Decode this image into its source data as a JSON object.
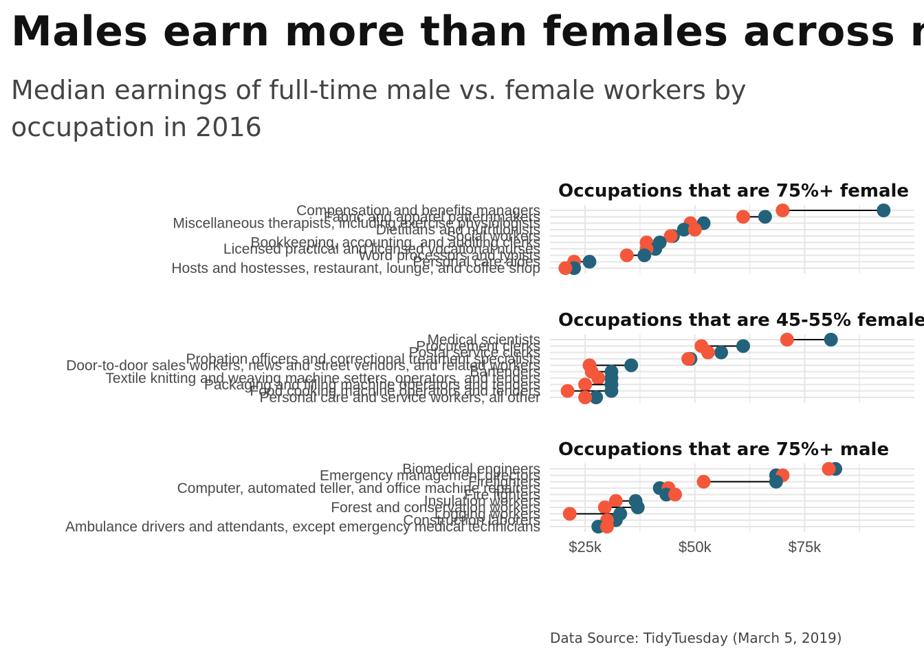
{
  "title": "Males earn more than females across most occupations",
  "subtitle": "Median earnings of full-time male vs. female workers by occupation in 2016",
  "caption": "Data Source: TidyTuesday (March 5, 2019)",
  "colors": {
    "male": "#23627a",
    "female": "#f4573a",
    "segment": "#000000",
    "grid": "#e5e5e5"
  },
  "chart_data": {
    "type": "dumbbell",
    "x_ticks": [
      {
        "value": 25000,
        "label": "$25k"
      },
      {
        "value": 50000,
        "label": "$50k"
      },
      {
        "value": 75000,
        "label": "$75k"
      }
    ],
    "xlim": [
      17000,
      100000
    ],
    "series": [
      {
        "name": "male"
      },
      {
        "name": "female"
      }
    ],
    "panels": [
      {
        "title": "Occupations that are 75%+ female",
        "occupations": [
          {
            "name": "Compensation and benefits managers",
            "male": 93000,
            "female": 70000
          },
          {
            "name": "Fabric and apparel patternmakers",
            "male": 66000,
            "female": 61000
          },
          {
            "name": "Miscellaneous therapists, including exercise physiologists",
            "male": 52000,
            "female": 49000
          },
          {
            "name": "Dietitians and nutritionists",
            "male": 47500,
            "female": 50000
          },
          {
            "name": "Social workers",
            "male": 45000,
            "female": 44500
          },
          {
            "name": "Bookkeeping, accounting, and auditing clerks",
            "male": 42000,
            "female": 39000
          },
          {
            "name": "Licensed practical and licensed vocational nurses",
            "male": 41000,
            "female": 39000
          },
          {
            "name": "Word processors and typists",
            "male": 38500,
            "female": 34500
          },
          {
            "name": "Personal care aides",
            "male": 26000,
            "female": 22500
          },
          {
            "name": "Hosts and hostesses, restaurant, lounge, and coffee shop",
            "male": 22500,
            "female": 20500
          }
        ]
      },
      {
        "title": "Occupations that are 45-55% female",
        "occupations": [
          {
            "name": "Medical scientists",
            "male": 81000,
            "female": 71000
          },
          {
            "name": "Procurement clerks",
            "male": 61000,
            "female": 51500
          },
          {
            "name": "Postal service clerks",
            "male": 56000,
            "female": 53000
          },
          {
            "name": "Probation officers and correctional treatment specialists",
            "male": 49000,
            "female": 48500
          },
          {
            "name": "Door-to-door sales workers, news and street vendors, and related workers",
            "male": 35500,
            "female": 26000
          },
          {
            "name": "Bartenders",
            "male": 31000,
            "female": 26500
          },
          {
            "name": "Textile knitting and weaving machine setters, operators, and tenders",
            "male": 31000,
            "female": 28000
          },
          {
            "name": "Packaging and filling machine operators and tenders",
            "male": 31000,
            "female": 25000
          },
          {
            "name": "Food cooking machine operators and tenders",
            "male": 31000,
            "female": 21000
          },
          {
            "name": "Personal care and service workers, all other",
            "male": 27500,
            "female": 25000
          }
        ]
      },
      {
        "title": "Occupations that are 75%+ male",
        "occupations": [
          {
            "name": "Biomedical engineers",
            "male": 82000,
            "female": 80500
          },
          {
            "name": "Emergency management directors",
            "male": 68500,
            "female": 70000
          },
          {
            "name": "Firefighters",
            "male": 68500,
            "female": 52000
          },
          {
            "name": "Computer, automated teller, and office machine repairers",
            "male": 42000,
            "female": 44000
          },
          {
            "name": "Fire fighters",
            "male": 43500,
            "female": 45500
          },
          {
            "name": "Insulation workers",
            "male": 36500,
            "female": 32000
          },
          {
            "name": "Forest and conservation workers",
            "male": 37000,
            "female": 29500
          },
          {
            "name": "Logging workers",
            "male": 33000,
            "female": 21500
          },
          {
            "name": "Construction laborers",
            "male": 32000,
            "female": 30000
          },
          {
            "name": "Ambulance drivers and attendants, except emergency medical technicians",
            "male": 28000,
            "female": 30000
          }
        ]
      }
    ]
  }
}
